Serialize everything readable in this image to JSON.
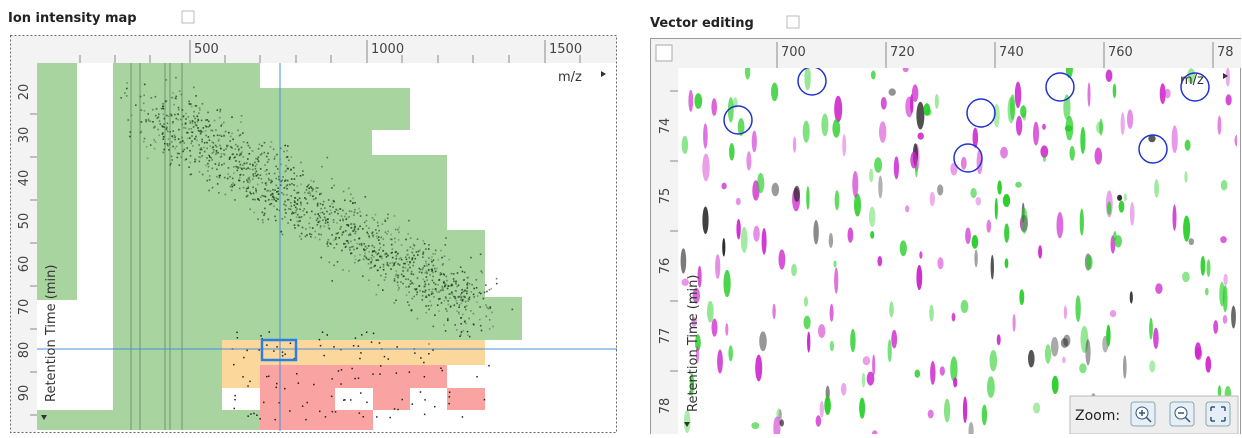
{
  "left_panel": {
    "title": "Ion intensity map",
    "x_axis": {
      "label": "m/z",
      "ticks": [
        "500",
        "1000",
        "1500"
      ]
    },
    "y_axis": {
      "label": "Retention Time (min)",
      "ticks": [
        "20",
        "30",
        "40",
        "50",
        "60",
        "70",
        "80",
        "90"
      ]
    }
  },
  "right_panel": {
    "title": "Vector editing",
    "x_axis": {
      "label": "m/z",
      "ticks": [
        "700",
        "720",
        "740",
        "760",
        "78"
      ]
    },
    "y_axis": {
      "label": "Retention Time (min)",
      "ticks": [
        "74",
        "75",
        "76",
        "77",
        "78"
      ]
    },
    "zoom_label": "Zoom:"
  }
}
